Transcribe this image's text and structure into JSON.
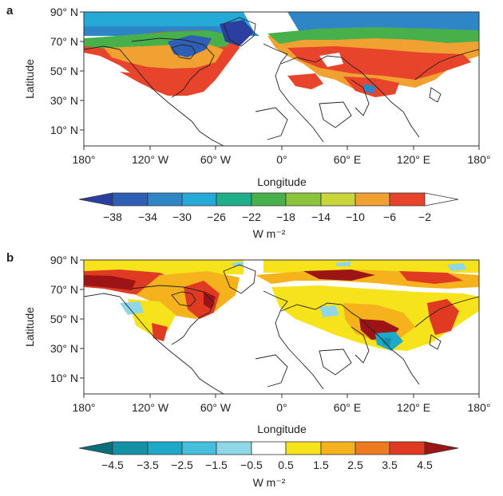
{
  "panels": [
    {
      "letter": "a",
      "ylabel": "Latitude",
      "xlabel": "Longitude",
      "lat_ticks": [
        "90° N",
        "70° N",
        "50° N",
        "30° N",
        "10° N"
      ],
      "lon_ticks": [
        "180°",
        "120° W",
        "60° W",
        "0°",
        "60° E",
        "120° E",
        "180°"
      ],
      "colorbar": {
        "labels": [
          "−38",
          "−34",
          "−30",
          "−26",
          "−22",
          "−18",
          "−14",
          "−10",
          "−6",
          "−2"
        ],
        "unit": "W m⁻²",
        "colors": [
          "#2b3fa0",
          "#2f5fb5",
          "#2f86c7",
          "#25a9d6",
          "#1fae8a",
          "#47b04a",
          "#8cc43e",
          "#c9d63a",
          "#f0a132",
          "#e8432b",
          "#ffffff"
        ]
      }
    },
    {
      "letter": "b",
      "ylabel": "Latitude",
      "xlabel": "Longitude",
      "lat_ticks": [
        "90° N",
        "70° N",
        "50° N",
        "30° N",
        "10° N"
      ],
      "lon_ticks": [
        "180°",
        "120° W",
        "60° W",
        "0°",
        "60° E",
        "120° E",
        "180°"
      ],
      "colorbar": {
        "labels": [
          "−4.5",
          "−3.5",
          "−2.5",
          "−1.5",
          "−0.5",
          "0.5",
          "1.5",
          "2.5",
          "3.5",
          "4.5"
        ],
        "unit": "W m⁻²",
        "colors": [
          "#0b6f7a",
          "#1591a6",
          "#1fa9c9",
          "#44bfdc",
          "#8fd6e6",
          "#ffffff",
          "#f6e31c",
          "#f6b21c",
          "#ee7a1f",
          "#e03a23",
          "#9d1416"
        ]
      }
    }
  ]
}
